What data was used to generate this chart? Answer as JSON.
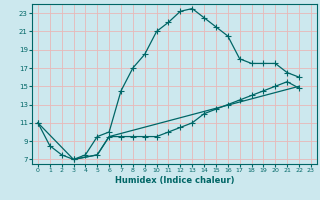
{
  "xlabel": "Humidex (Indice chaleur)",
  "bg_color": "#cce8ee",
  "grid_color": "#e8b8b8",
  "line_color": "#006666",
  "xlim": [
    -0.5,
    23.5
  ],
  "ylim": [
    6.5,
    24.0
  ],
  "yticks": [
    7,
    9,
    11,
    13,
    15,
    17,
    19,
    21,
    23
  ],
  "xticks": [
    0,
    1,
    2,
    3,
    4,
    5,
    6,
    7,
    8,
    9,
    10,
    11,
    12,
    13,
    14,
    15,
    16,
    17,
    18,
    19,
    20,
    21,
    22,
    23
  ],
  "series1_x": [
    0,
    1,
    2,
    3,
    4,
    5,
    6,
    7,
    8,
    9,
    10,
    11,
    12,
    13,
    14,
    15,
    16,
    17,
    18,
    19,
    20,
    21,
    22
  ],
  "series1_y": [
    11.0,
    8.5,
    7.5,
    7.0,
    7.5,
    9.5,
    10.0,
    14.5,
    17.0,
    18.5,
    21.0,
    22.0,
    23.2,
    23.5,
    22.5,
    21.5,
    20.5,
    18.0,
    17.5,
    17.5,
    17.5,
    16.5,
    16.0
  ],
  "series2_x": [
    0,
    3,
    5,
    6,
    7,
    8,
    9,
    10,
    11,
    12,
    13,
    14,
    15,
    16,
    17,
    18,
    19,
    20,
    21,
    22
  ],
  "series2_y": [
    11.0,
    7.0,
    7.5,
    9.5,
    9.5,
    9.5,
    9.5,
    9.5,
    10.0,
    10.5,
    11.0,
    12.0,
    12.5,
    13.0,
    13.5,
    14.0,
    14.5,
    15.0,
    15.5,
    14.8
  ],
  "series3_x": [
    3,
    5,
    6,
    22
  ],
  "series3_y": [
    7.0,
    7.5,
    9.5,
    15.0
  ]
}
